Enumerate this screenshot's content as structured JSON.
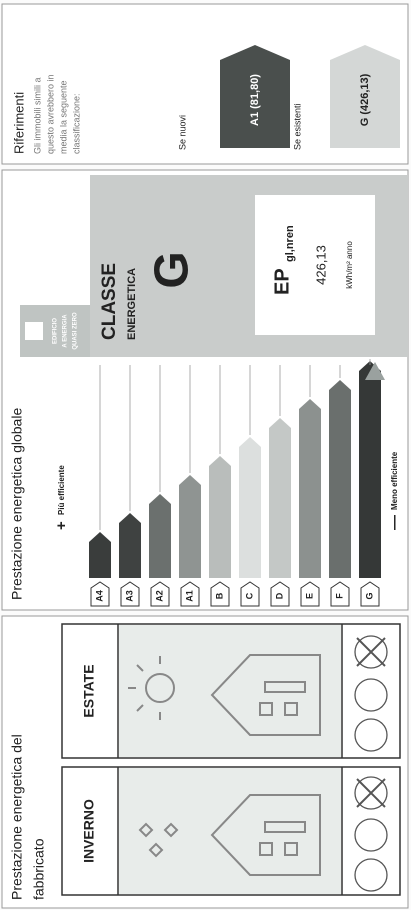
{
  "fabbricato": {
    "title": [
      "Prestazione energetica del",
      "fabbricato"
    ],
    "columns": [
      "INVERNO",
      "ESTATE"
    ]
  },
  "globale": {
    "title": "Prestazione energetica globale",
    "more": "Più efficiente",
    "less": "Meno efficiente",
    "classes": [
      "A4",
      "A3",
      "A2",
      "A1",
      "B",
      "C",
      "D",
      "E",
      "F",
      "G"
    ],
    "nzeb": [
      "EDIFICIO",
      "A ENERGIA",
      "QUASI ZERO"
    ],
    "classe_title": [
      "CLASSE",
      "ENERGETICA"
    ],
    "classe": "G",
    "ep_label": "EP",
    "ep_sub": "gl,nren",
    "ep_value": "426,13",
    "ep_unit": "kWh/m² anno"
  },
  "riferimenti": {
    "title": "Riferimenti",
    "text": [
      "Gli immobili simili a",
      "questo avrebbero in",
      "media la seguente",
      "classificazione:"
    ],
    "new_label": "Se nuovi",
    "new_value": "A1 (81,80)",
    "existing_label": "Se esistenti",
    "existing_value": "G (426,13)"
  }
}
